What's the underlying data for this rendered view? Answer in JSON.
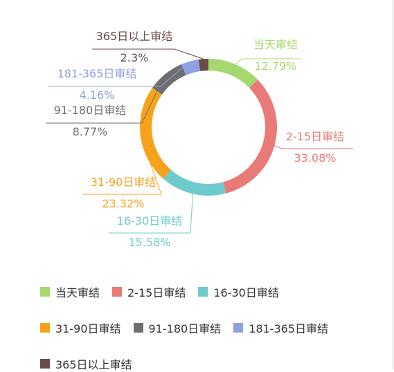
{
  "chart_data": {
    "type": "pie",
    "variant": "donut",
    "title": "",
    "series": [
      {
        "name": "",
        "slices": [
          {
            "label": "当天审结",
            "value": 12.79,
            "display": "12.79%",
            "color": "#a5d86e"
          },
          {
            "label": "2-15日审结",
            "value": 33.08,
            "display": "33.08%",
            "color": "#e87a78"
          },
          {
            "label": "16-30日审结",
            "value": 15.58,
            "display": "15.58%",
            "color": "#6dcbcb"
          },
          {
            "label": "31-90日审结",
            "value": 23.32,
            "display": "23.32%",
            "color": "#f7a21b"
          },
          {
            "label": "91-180日审结",
            "value": 8.77,
            "display": "8.77%",
            "color": "#6e6e6e"
          },
          {
            "label": "181-365日审结",
            "value": 4.16,
            "display": "4.16%",
            "color": "#8fa0e3"
          },
          {
            "label": "365日以上审结",
            "value": 2.3,
            "display": "2.3%",
            "color": "#6b4a48"
          }
        ]
      }
    ],
    "legend": {
      "position": "bottom-left"
    }
  }
}
